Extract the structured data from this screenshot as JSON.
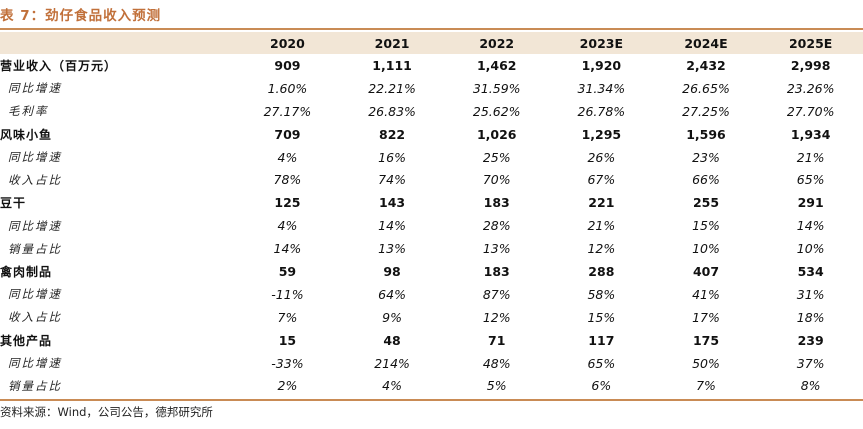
{
  "title": "表 7：劲仔食品收入预测",
  "header": [
    "",
    "2020",
    "2021",
    "2022",
    "2023E",
    "2024E",
    "2025E"
  ],
  "rows": [
    {
      "type": "main",
      "label": "营业收入（百万元）",
      "values": [
        "909",
        "1,111",
        "1,462",
        "1,920",
        "2,432",
        "2,998"
      ]
    },
    {
      "type": "sub",
      "label": "同比增速",
      "values": [
        "1.60%",
        "22.21%",
        "31.59%",
        "31.34%",
        "26.65%",
        "23.26%"
      ]
    },
    {
      "type": "sub",
      "label": "毛利率",
      "values": [
        "27.17%",
        "26.83%",
        "25.62%",
        "26.78%",
        "27.25%",
        "27.70%"
      ]
    },
    {
      "type": "main",
      "label": "风味小鱼",
      "values": [
        "709",
        "822",
        "1,026",
        "1,295",
        "1,596",
        "1,934"
      ]
    },
    {
      "type": "sub",
      "label": "同比增速",
      "values": [
        "4%",
        "16%",
        "25%",
        "26%",
        "23%",
        "21%"
      ]
    },
    {
      "type": "sub",
      "label": "收入占比",
      "values": [
        "78%",
        "74%",
        "70%",
        "67%",
        "66%",
        "65%"
      ]
    },
    {
      "type": "main",
      "label": "豆干",
      "values": [
        "125",
        "143",
        "183",
        "221",
        "255",
        "291"
      ]
    },
    {
      "type": "sub",
      "label": "同比增速",
      "values": [
        "4%",
        "14%",
        "28%",
        "21%",
        "15%",
        "14%"
      ]
    },
    {
      "type": "sub",
      "label": "销量占比",
      "values": [
        "14%",
        "13%",
        "13%",
        "12%",
        "10%",
        "10%"
      ]
    },
    {
      "type": "main",
      "label": "禽肉制品",
      "values": [
        "59",
        "98",
        "183",
        "288",
        "407",
        "534"
      ]
    },
    {
      "type": "sub",
      "label": "同比增速",
      "values": [
        "-11%",
        "64%",
        "87%",
        "58%",
        "41%",
        "31%"
      ]
    },
    {
      "type": "sub",
      "label": "收入占比",
      "values": [
        "7%",
        "9%",
        "12%",
        "15%",
        "17%",
        "18%"
      ]
    },
    {
      "type": "main",
      "label": "其他产品",
      "values": [
        "15",
        "48",
        "71",
        "117",
        "175",
        "239"
      ]
    },
    {
      "type": "sub",
      "label": "同比增速",
      "values": [
        "-33%",
        "214%",
        "48%",
        "65%",
        "50%",
        "37%"
      ]
    },
    {
      "type": "sub",
      "label": "销量占比",
      "values": [
        "2%",
        "4%",
        "5%",
        "6%",
        "7%",
        "8%"
      ]
    }
  ],
  "source": "资料来源：Wind，公司公告，德邦研究所",
  "colors": {
    "accent": "#c1703a",
    "rule": "#c98b55",
    "header_bg": "#f2e6d6"
  }
}
